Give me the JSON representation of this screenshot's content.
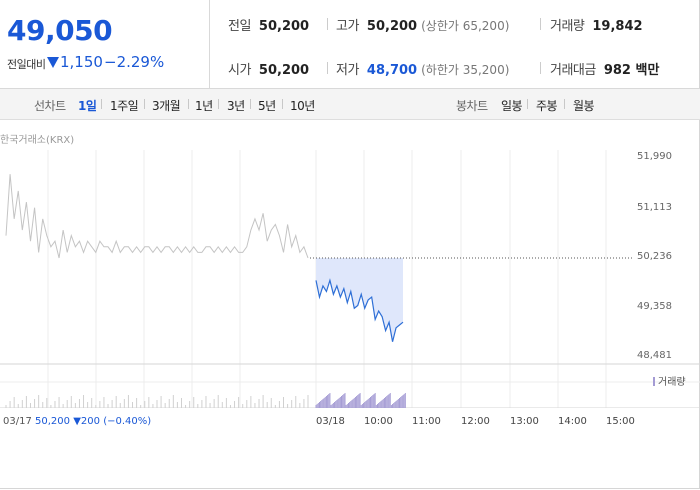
{
  "quote": {
    "price": "49,050",
    "change_label": "전일대비",
    "change_value": "1,150",
    "change_pct": "−2.29%",
    "prev_close_label": "전일",
    "prev_close": "50,200",
    "open_label": "시가",
    "open": "50,200",
    "high_label": "고가",
    "high": "50,200",
    "upper_limit": "(상한가 65,200)",
    "low_label": "저가",
    "low": "48,700",
    "lower_limit": "(하한가 35,200)",
    "volume_label": "거래량",
    "volume": "19,842",
    "amount_label": "거래대금",
    "amount": "982 백만"
  },
  "chart_tabs": {
    "line_label": "선차트",
    "periods": [
      "1일",
      "1주일",
      "3개월",
      "1년",
      "3년",
      "5년",
      "10년"
    ],
    "selected": "1일",
    "candle_label": "봉차트",
    "candle_periods": [
      "일봉",
      "주봉",
      "월봉"
    ]
  },
  "chart": {
    "exchange": "한국거래소(KRX)",
    "volume_legend": "거래량",
    "y_ticks": [
      "51,990",
      "51,113",
      "50,236",
      "49,358",
      "48,481"
    ],
    "x_dates": [
      "03/17",
      "03/18"
    ],
    "x_times": [
      "10:00",
      "11:00",
      "12:00",
      "13:00",
      "14:00",
      "15:00"
    ],
    "prev_info_price": "50,200",
    "prev_info_change": "200",
    "prev_info_pct": "(−0.40%)",
    "colors": {
      "prev_day": "#c4c4c4",
      "today": "#2e6fd6",
      "fill": "#dfe7fb",
      "volume": "#a49bd4",
      "down": "#1a58d6"
    }
  },
  "chart_data": {
    "type": "line",
    "ylim": [
      48481,
      51990
    ],
    "series": [
      {
        "values": [
          50600,
          51700,
          50900,
          51400,
          50700,
          51200,
          50500,
          51100,
          50300,
          50900,
          50600,
          50400,
          50500,
          50200,
          50700,
          50300,
          50600,
          50400,
          50500,
          50300,
          50500,
          50400,
          50300,
          50500,
          50400,
          50400,
          50300,
          50500,
          50300,
          50400,
          50400,
          50300,
          50400,
          50300,
          50400,
          50400,
          50300,
          50400,
          50300,
          50400,
          50400,
          50300,
          50400,
          50300,
          50400,
          50300,
          50400,
          50300,
          50300,
          50400,
          50400,
          50300,
          50400,
          50300,
          50400,
          50300,
          50400,
          50300,
          50300,
          50400,
          50700,
          50900,
          50700,
          51000,
          50500,
          50700,
          50800,
          50600,
          50300,
          50800,
          50400,
          50600,
          50300,
          50400,
          50200
        ]
      },
      {
        "values": [
          49800,
          49500,
          49700,
          49600,
          49800,
          49550,
          49700,
          49500,
          49650,
          49400,
          49600,
          49300,
          49350,
          49550,
          49300,
          49450,
          49500,
          49100,
          49250,
          49150,
          48900,
          49050,
          48700,
          48950,
          49000,
          49050
        ]
      }
    ],
    "reference": 50200
  }
}
